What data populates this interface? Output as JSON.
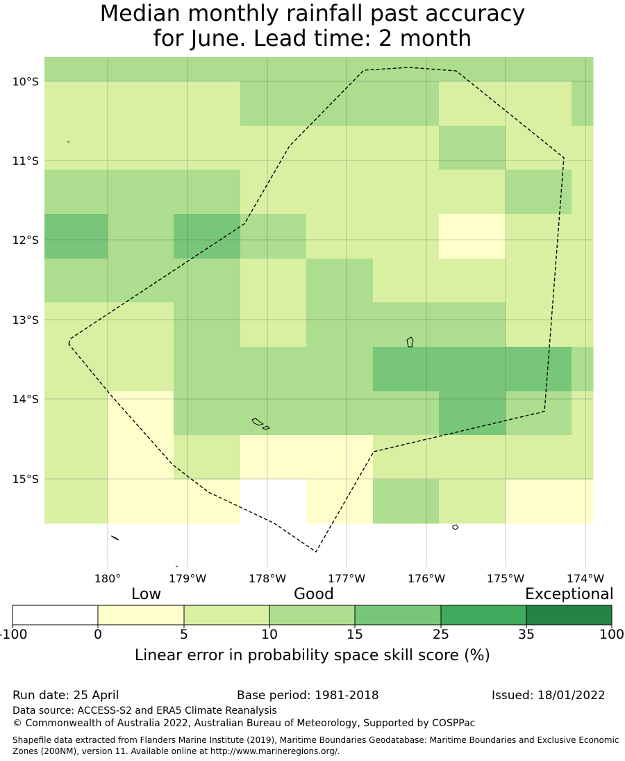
{
  "title": {
    "line1": "Median monthly rainfall past accuracy",
    "line2": "for June. Lead time: 2 month"
  },
  "map": {
    "lat_labels": [
      "10°S",
      "11°S",
      "12°S",
      "13°S",
      "14°S",
      "15°S"
    ],
    "lon_labels": [
      "180°",
      "179°W",
      "178°W",
      "177°W",
      "176°W",
      "175°W",
      "174°W"
    ],
    "grid_rows": [
      [
        3,
        3,
        3,
        3,
        3,
        3,
        3,
        3,
        3
      ],
      [
        2,
        2,
        2,
        3,
        3,
        3,
        2,
        2,
        3
      ],
      [
        2,
        2,
        2,
        2,
        2,
        2,
        3,
        2,
        2
      ],
      [
        3,
        3,
        3,
        2,
        2,
        2,
        2,
        3,
        2
      ],
      [
        4,
        3,
        4,
        3,
        2,
        2,
        1,
        2,
        2
      ],
      [
        3,
        3,
        3,
        2,
        3,
        2,
        2,
        2,
        2
      ],
      [
        2,
        2,
        3,
        2,
        3,
        3,
        3,
        2,
        2
      ],
      [
        2,
        2,
        3,
        3,
        3,
        4,
        4,
        4,
        3
      ],
      [
        2,
        1,
        3,
        3,
        3,
        3,
        4,
        3,
        2
      ],
      [
        2,
        1,
        2,
        1,
        1,
        2,
        2,
        2,
        2
      ],
      [
        2,
        1,
        1,
        0,
        1,
        3,
        2,
        1,
        1
      ]
    ]
  },
  "colorbar": {
    "colors": [
      "#ffffff",
      "#ffffcc",
      "#d9f0a3",
      "#addd8e",
      "#78c679",
      "#41ab5d",
      "#238443"
    ],
    "ticks": [
      "-100",
      "0",
      "5",
      "10",
      "15",
      "25",
      "35",
      "100"
    ],
    "category_labels": [
      "Low",
      "Good",
      "Exceptional"
    ],
    "title": "Linear error in probability space skill score (%)"
  },
  "footer": {
    "run_date": "Run date: 25 April",
    "base_period": "Base period: 1981-2018",
    "issued": "Issued: 18/01/2022",
    "data_source": "Data source: ACCESS-S2 and ERA5 Climate Reanalysis",
    "copyright": "© Commonwealth of Australia 2022, Australian Bureau of Meteorology, Supported by COSPPac",
    "shapefile": "Shapefile data extracted from Flanders Marine Institute (2019), Maritime Boundaries Geodatabase: Maritime Boundaries and Exclusive Economic Zones (200NM), version 11. Available online at http://www.marineregions.org/."
  }
}
